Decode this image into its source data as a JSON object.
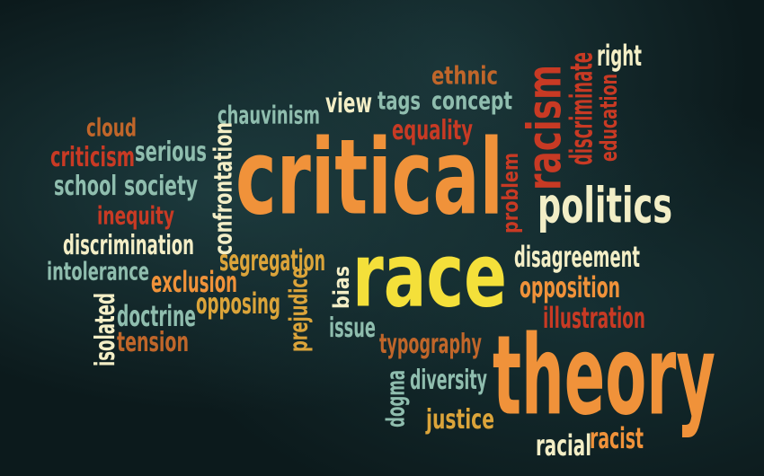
{
  "colors": {
    "orange": "#f0923a",
    "yellow": "#f4e03a",
    "cream": "#f3eec6",
    "teal": "#8fbdae",
    "red": "#c83a24",
    "rust": "#c0662a",
    "gold": "#dba43a"
  },
  "words": [
    {
      "id": "critical",
      "text": "critical",
      "color": "orange"
    },
    {
      "id": "race",
      "text": "race",
      "color": "yellow"
    },
    {
      "id": "theory",
      "text": "theory",
      "color": "orange"
    },
    {
      "id": "politics",
      "text": "politics",
      "color": "cream"
    },
    {
      "id": "racism",
      "text": "racism",
      "color": "red"
    },
    {
      "id": "discriminate",
      "text": "discriminate",
      "color": "red"
    },
    {
      "id": "education",
      "text": "education",
      "color": "red"
    },
    {
      "id": "right",
      "text": "right",
      "color": "cream"
    },
    {
      "id": "ethnic",
      "text": "ethnic",
      "color": "rust"
    },
    {
      "id": "concept",
      "text": "concept",
      "color": "teal"
    },
    {
      "id": "tags",
      "text": "tags",
      "color": "teal"
    },
    {
      "id": "view",
      "text": "view",
      "color": "cream"
    },
    {
      "id": "equality",
      "text": "equality",
      "color": "red"
    },
    {
      "id": "chauvinism",
      "text": "chauvinism",
      "color": "teal"
    },
    {
      "id": "cloud",
      "text": "cloud",
      "color": "rust"
    },
    {
      "id": "criticism",
      "text": "criticism",
      "color": "red"
    },
    {
      "id": "serious",
      "text": "serious",
      "color": "teal"
    },
    {
      "id": "school",
      "text": "school",
      "color": "teal"
    },
    {
      "id": "society",
      "text": "society",
      "color": "teal"
    },
    {
      "id": "inequity",
      "text": "inequity",
      "color": "red"
    },
    {
      "id": "confrontation",
      "text": "confrontation",
      "color": "cream"
    },
    {
      "id": "problem",
      "text": "problem",
      "color": "red"
    },
    {
      "id": "discrimination",
      "text": "discrimination",
      "color": "cream"
    },
    {
      "id": "intolerance",
      "text": "intolerance",
      "color": "teal"
    },
    {
      "id": "segregation",
      "text": "segregation",
      "color": "gold"
    },
    {
      "id": "exclusion",
      "text": "exclusion",
      "color": "orange"
    },
    {
      "id": "opposing",
      "text": "opposing",
      "color": "gold"
    },
    {
      "id": "bias",
      "text": "bias",
      "color": "cream"
    },
    {
      "id": "prejudice",
      "text": "prejudice",
      "color": "gold"
    },
    {
      "id": "disagreement",
      "text": "disagreement",
      "color": "cream"
    },
    {
      "id": "opposition",
      "text": "opposition",
      "color": "orange"
    },
    {
      "id": "illustration",
      "text": "illustration",
      "color": "red"
    },
    {
      "id": "isolated",
      "text": "isolated",
      "color": "cream"
    },
    {
      "id": "doctrine",
      "text": "doctrine",
      "color": "teal"
    },
    {
      "id": "tension",
      "text": "tension",
      "color": "rust"
    },
    {
      "id": "issue",
      "text": "issue",
      "color": "teal"
    },
    {
      "id": "typography",
      "text": "typography",
      "color": "rust"
    },
    {
      "id": "diversity",
      "text": "diversity",
      "color": "teal"
    },
    {
      "id": "dogma",
      "text": "dogma",
      "color": "teal"
    },
    {
      "id": "justice",
      "text": "justice",
      "color": "gold"
    },
    {
      "id": "racial",
      "text": "racial",
      "color": "cream"
    },
    {
      "id": "racist",
      "text": "racist",
      "color": "orange"
    }
  ]
}
